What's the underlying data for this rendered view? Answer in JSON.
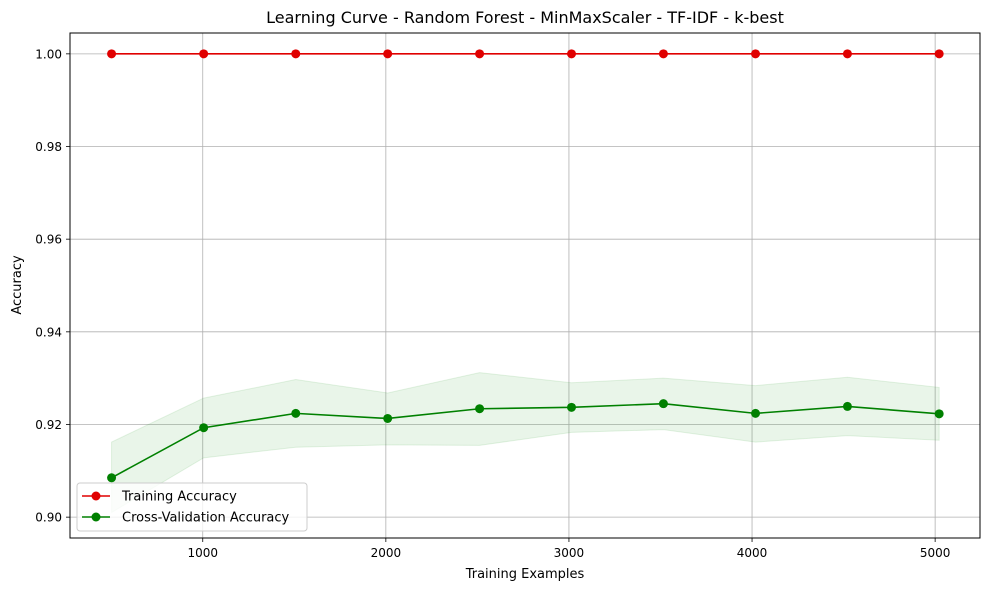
{
  "chart_data": {
    "type": "line",
    "title": "Learning Curve - Random Forest - MinMaxScaler - TF-IDF - k-best",
    "xlabel": "Training Examples",
    "ylabel": "Accuracy",
    "xlim": [
      275,
      5245
    ],
    "ylim": [
      0.8955,
      1.0045
    ],
    "xticks": [
      1000,
      2000,
      3000,
      4000,
      5000
    ],
    "xtick_labels": [
      "1000",
      "2000",
      "3000",
      "4000",
      "5000"
    ],
    "yticks": [
      0.9,
      0.92,
      0.94,
      0.96,
      0.98,
      1.0
    ],
    "ytick_labels": [
      "0.90",
      "0.92",
      "0.94",
      "0.96",
      "0.98",
      "1.00"
    ],
    "grid": true,
    "legend_position": "lower-left",
    "x": [
      502,
      1005,
      1508,
      2010,
      2512,
      3014,
      3516,
      4019,
      4521,
      5022
    ],
    "series": [
      {
        "name": "Training Accuracy",
        "color": "#e00000",
        "marker": "circle",
        "values": [
          1.0,
          1.0,
          1.0,
          1.0,
          1.0,
          1.0,
          1.0,
          1.0,
          1.0,
          1.0
        ]
      },
      {
        "name": "Cross-Validation Accuracy",
        "color": "#008000",
        "marker": "circle",
        "band_color": "#2ca02c",
        "values": [
          0.9085,
          0.9193,
          0.9224,
          0.9213,
          0.9234,
          0.9237,
          0.9245,
          0.9224,
          0.9239,
          0.9223
        ],
        "band_upper": [
          0.9162,
          0.9257,
          0.9297,
          0.9268,
          0.9312,
          0.929,
          0.93,
          0.9284,
          0.9302,
          0.928
        ],
        "band_lower": [
          0.901,
          0.9128,
          0.9151,
          0.9156,
          0.9155,
          0.9183,
          0.9189,
          0.9162,
          0.9176,
          0.9166
        ]
      }
    ]
  }
}
